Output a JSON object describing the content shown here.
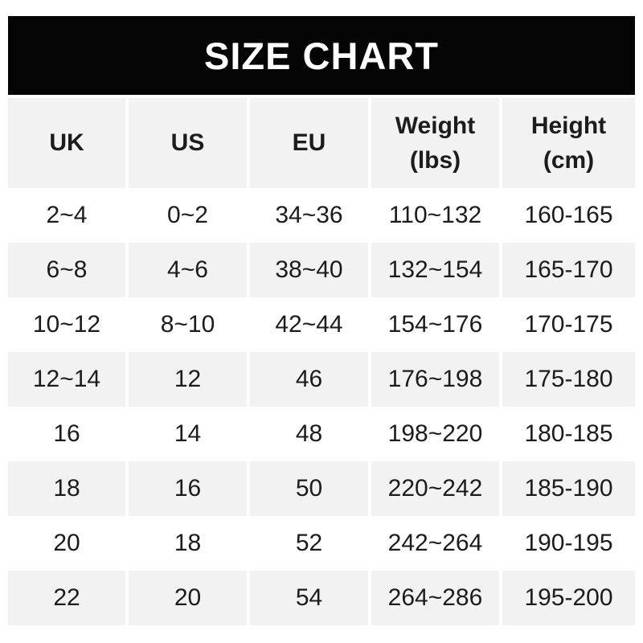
{
  "title": "SIZE CHART",
  "colors": {
    "banner_bg": "#050505",
    "banner_text": "#ffffff",
    "row_shade_bg": "#f2f2f2",
    "row_plain_bg": "#ffffff",
    "text": "#1c1c1c"
  },
  "chart_data": {
    "type": "table",
    "title": "SIZE CHART",
    "columns": [
      {
        "lines": [
          "UK"
        ]
      },
      {
        "lines": [
          "US"
        ]
      },
      {
        "lines": [
          "EU"
        ]
      },
      {
        "lines": [
          "Weight",
          "(lbs)"
        ]
      },
      {
        "lines": [
          "Height",
          "(cm)"
        ]
      }
    ],
    "rows": [
      [
        "2~4",
        "0~2",
        "34~36",
        "110~132",
        "160-165"
      ],
      [
        "6~8",
        "4~6",
        "38~40",
        "132~154",
        "165-170"
      ],
      [
        "10~12",
        "8~10",
        "42~44",
        "154~176",
        "170-175"
      ],
      [
        "12~14",
        "12",
        "46",
        "176~198",
        "175-180"
      ],
      [
        "16",
        "14",
        "48",
        "198~220",
        "180-185"
      ],
      [
        "18",
        "16",
        "50",
        "220~242",
        "185-190"
      ],
      [
        "20",
        "18",
        "52",
        "242~264",
        "190-195"
      ],
      [
        "22",
        "20",
        "54",
        "264~286",
        "195-200"
      ]
    ],
    "layout": {
      "striping": "data rows alternate white then light-gray starting with white",
      "header_style": "bold, light-gray background",
      "grid": "no borders; 4px white gutters between columns"
    }
  }
}
